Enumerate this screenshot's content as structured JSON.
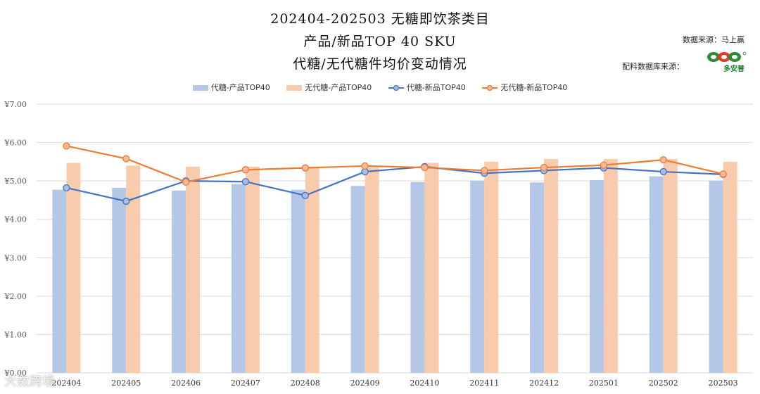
{
  "header": {
    "title_line1": "202404-202503 无糖即饮茶类目",
    "title_line2": "产品/新品TOP 40 SKU",
    "title_line3": "代糖/无代糖件均价变动情况",
    "source_label": "数据来源：马上赢",
    "secondary_source_label": "配料数据库来源：",
    "logo_text": "多安普"
  },
  "watermark": "大数跨境",
  "colors": {
    "bar1": "#b4c7e7",
    "bar2": "#f8cbad",
    "line1": "#4472c4",
    "line2": "#ed7d31",
    "line1_marker": "#a9bde5",
    "line2_marker": "#f5b99a",
    "grid": "#d9d9d9"
  },
  "chart_data": {
    "type": "bar+line",
    "categories": [
      "202404",
      "202405",
      "202406",
      "202407",
      "202408",
      "202409",
      "202410",
      "202411",
      "202412",
      "202501",
      "202502",
      "202503"
    ],
    "series": [
      {
        "name": "代糖-产品TOP40",
        "kind": "bar",
        "values": [
          4.77,
          4.82,
          4.75,
          4.92,
          4.77,
          4.87,
          4.97,
          5.01,
          4.96,
          5.02,
          5.12,
          5.01
        ]
      },
      {
        "name": "无代糖-产品TOP40",
        "kind": "bar",
        "values": [
          5.47,
          5.4,
          5.37,
          5.37,
          5.37,
          5.35,
          5.47,
          5.5,
          5.57,
          5.57,
          5.57,
          5.5
        ]
      },
      {
        "name": "代糖-新品TOP40",
        "kind": "line",
        "values": [
          4.82,
          4.47,
          5.0,
          4.98,
          4.62,
          5.24,
          5.37,
          5.2,
          5.27,
          5.34,
          5.24,
          5.17
        ]
      },
      {
        "name": "无代糖-新品TOP40",
        "kind": "line",
        "values": [
          5.91,
          5.58,
          4.97,
          5.29,
          5.34,
          5.39,
          5.35,
          5.27,
          5.35,
          5.41,
          5.55,
          5.18
        ]
      }
    ],
    "yticks": [
      "¥0.00",
      "¥1.00",
      "¥2.00",
      "¥3.00",
      "¥4.00",
      "¥5.00",
      "¥6.00",
      "¥7.00"
    ],
    "ylim": [
      0,
      7
    ],
    "legend_position": "top",
    "grid": true
  }
}
